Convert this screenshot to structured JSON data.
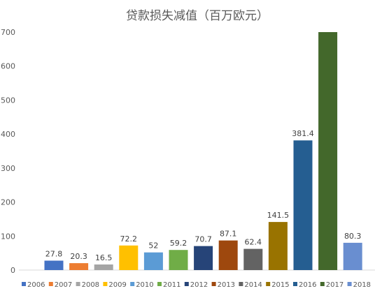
{
  "chart_data": {
    "type": "bar",
    "title": "贷款损失减值（百万欧元）",
    "xlabel": "",
    "ylabel": "",
    "ylim": [
      0,
      700
    ],
    "yticks": [
      0,
      100,
      200,
      300,
      400,
      500,
      600,
      700
    ],
    "grid": false,
    "legend_position": "bottom",
    "series": [
      {
        "name": "2006",
        "value": 27.8,
        "label": "27.8",
        "color": "#4472C4"
      },
      {
        "name": "2007",
        "value": 20.3,
        "label": "20.3",
        "color": "#ED7D31"
      },
      {
        "name": "2008",
        "value": 16.5,
        "label": "16.5",
        "color": "#A5A5A5"
      },
      {
        "name": "2009",
        "value": 72.2,
        "label": "72.2",
        "color": "#FFC000"
      },
      {
        "name": "2010",
        "value": 52,
        "label": "52",
        "color": "#5B9BD5"
      },
      {
        "name": "2011",
        "value": 59.2,
        "label": "59.2",
        "color": "#70AD47"
      },
      {
        "name": "2012",
        "value": 70.7,
        "label": "70.7",
        "color": "#264478"
      },
      {
        "name": "2013",
        "value": 87.1,
        "label": "87.1",
        "color": "#9E480E"
      },
      {
        "name": "2014",
        "value": 62.4,
        "label": "62.4",
        "color": "#636363"
      },
      {
        "name": "2015",
        "value": 141.5,
        "label": "141.5",
        "color": "#997300"
      },
      {
        "name": "2016",
        "value": 381.4,
        "label": "381.4",
        "color": "#255E91"
      },
      {
        "name": "2017",
        "value": 700,
        "label": "",
        "color": "#43682B"
      },
      {
        "name": "2018",
        "value": 80.3,
        "label": "80.3",
        "color": "#698ED0"
      }
    ]
  }
}
